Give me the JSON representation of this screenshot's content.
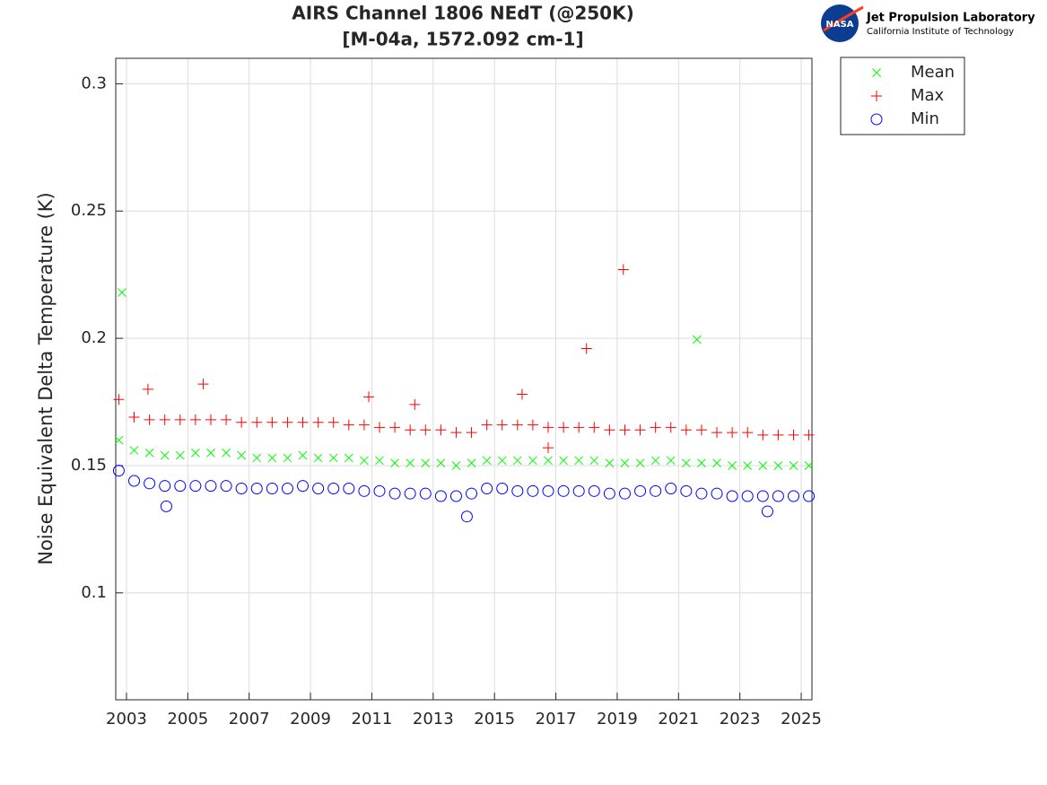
{
  "chart_data": {
    "type": "scatter",
    "title": "AIRS Channel 1806 NEdT (@250K)",
    "subtitle": "[M-04a, 1572.092 cm-1]",
    "y_label": "Noise Equivalent Delta Temperature (K)",
    "logo": {
      "badge": "NASA",
      "name": "Jet Propulsion Laboratory",
      "institute": "California Institute of Technology"
    },
    "xlim": [
      2002.65,
      2025.35
    ],
    "xticks": [
      2003,
      2005,
      2007,
      2009,
      2011,
      2013,
      2015,
      2017,
      2019,
      2021,
      2023,
      2025
    ],
    "ylim": [
      0.058,
      0.31
    ],
    "yticks": [
      0.1,
      0.15,
      0.2,
      0.25,
      0.3
    ],
    "grid": true,
    "legend": "outside-top-right",
    "series": [
      {
        "name": "Mean",
        "color": "#00ff00",
        "marker": "x",
        "x": [
          2002.75,
          2003.25,
          2003.75,
          2004.25,
          2004.75,
          2005.25,
          2005.75,
          2006.25,
          2006.75,
          2007.25,
          2007.75,
          2008.25,
          2008.75,
          2009.25,
          2009.75,
          2010.25,
          2010.75,
          2011.25,
          2011.75,
          2012.25,
          2012.75,
          2013.25,
          2013.75,
          2014.25,
          2014.75,
          2015.25,
          2015.75,
          2016.25,
          2016.75,
          2017.25,
          2017.75,
          2018.25,
          2018.75,
          2019.25,
          2019.75,
          2020.25,
          2020.75,
          2021.25,
          2021.75,
          2022.25,
          2022.75,
          2023.25,
          2023.75,
          2024.25,
          2024.75,
          2025.25,
          2002.85,
          2021.6
        ],
        "values": [
          0.16,
          0.156,
          0.155,
          0.154,
          0.154,
          0.155,
          0.155,
          0.155,
          0.154,
          0.153,
          0.153,
          0.153,
          0.154,
          0.153,
          0.153,
          0.153,
          0.152,
          0.152,
          0.151,
          0.151,
          0.151,
          0.151,
          0.15,
          0.151,
          0.152,
          0.152,
          0.152,
          0.152,
          0.152,
          0.152,
          0.152,
          0.152,
          0.151,
          0.151,
          0.151,
          0.152,
          0.152,
          0.151,
          0.151,
          0.151,
          0.15,
          0.15,
          0.15,
          0.15,
          0.15,
          0.15,
          0.218,
          0.1995
        ]
      },
      {
        "name": "Max",
        "color": "#ff0000",
        "marker": "+",
        "x": [
          2002.75,
          2003.25,
          2003.75,
          2004.25,
          2004.75,
          2005.25,
          2005.75,
          2006.25,
          2006.75,
          2007.25,
          2007.75,
          2008.25,
          2008.75,
          2009.25,
          2009.75,
          2010.25,
          2010.75,
          2011.25,
          2011.75,
          2012.25,
          2012.75,
          2013.25,
          2013.75,
          2014.25,
          2014.75,
          2015.25,
          2015.75,
          2016.25,
          2016.75,
          2017.25,
          2017.75,
          2018.25,
          2018.75,
          2019.25,
          2019.75,
          2020.25,
          2020.75,
          2021.25,
          2021.75,
          2022.25,
          2022.75,
          2023.25,
          2023.75,
          2024.25,
          2024.75,
          2025.25,
          2003.7,
          2005.5,
          2010.9,
          2012.4,
          2015.9,
          2016.75,
          2018.0,
          2019.2
        ],
        "values": [
          0.176,
          0.169,
          0.168,
          0.168,
          0.168,
          0.168,
          0.168,
          0.168,
          0.167,
          0.167,
          0.167,
          0.167,
          0.167,
          0.167,
          0.167,
          0.166,
          0.166,
          0.165,
          0.165,
          0.164,
          0.164,
          0.164,
          0.163,
          0.163,
          0.166,
          0.166,
          0.166,
          0.166,
          0.165,
          0.165,
          0.165,
          0.165,
          0.164,
          0.164,
          0.164,
          0.165,
          0.165,
          0.164,
          0.164,
          0.163,
          0.163,
          0.163,
          0.162,
          0.162,
          0.162,
          0.162,
          0.18,
          0.182,
          0.177,
          0.174,
          0.178,
          0.157,
          0.196,
          0.227
        ]
      },
      {
        "name": "Min",
        "color": "#0000ff",
        "marker": "o",
        "x": [
          2002.75,
          2003.25,
          2003.75,
          2004.25,
          2004.75,
          2005.25,
          2005.75,
          2006.25,
          2006.75,
          2007.25,
          2007.75,
          2008.25,
          2008.75,
          2009.25,
          2009.75,
          2010.25,
          2010.75,
          2011.25,
          2011.75,
          2012.25,
          2012.75,
          2013.25,
          2013.75,
          2014.25,
          2014.75,
          2015.25,
          2015.75,
          2016.25,
          2016.75,
          2017.25,
          2017.75,
          2018.25,
          2018.75,
          2019.25,
          2019.75,
          2020.25,
          2020.75,
          2021.25,
          2021.75,
          2022.25,
          2022.75,
          2023.25,
          2023.75,
          2024.25,
          2024.75,
          2025.25,
          2004.3,
          2014.1,
          2023.9
        ],
        "values": [
          0.148,
          0.144,
          0.143,
          0.142,
          0.142,
          0.142,
          0.142,
          0.142,
          0.141,
          0.141,
          0.141,
          0.141,
          0.142,
          0.141,
          0.141,
          0.141,
          0.14,
          0.14,
          0.139,
          0.139,
          0.139,
          0.138,
          0.138,
          0.139,
          0.141,
          0.141,
          0.14,
          0.14,
          0.14,
          0.14,
          0.14,
          0.14,
          0.139,
          0.139,
          0.14,
          0.14,
          0.141,
          0.14,
          0.139,
          0.139,
          0.138,
          0.138,
          0.138,
          0.138,
          0.138,
          0.138,
          0.134,
          0.13,
          0.132
        ]
      }
    ]
  }
}
